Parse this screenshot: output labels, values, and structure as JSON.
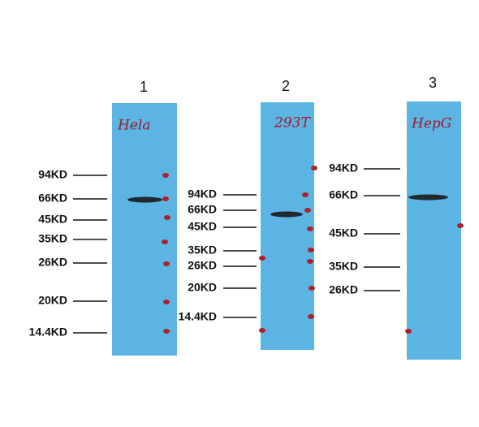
{
  "panels": [
    {
      "number": "1",
      "lane_label": "Hela",
      "markers": [
        "94KD",
        "66KD",
        "45KD",
        "35KD",
        "26KD",
        "20KD",
        "14.4KD"
      ]
    },
    {
      "number": "2",
      "lane_label": "293T",
      "markers": [
        "94KD",
        "66KD",
        "45KD",
        "35KD",
        "26KD",
        "20KD",
        "14.4KD"
      ]
    },
    {
      "number": "3",
      "lane_label": "HepG",
      "markers": [
        "94KD",
        "66KD",
        "45KD",
        "35KD",
        "26KD"
      ]
    }
  ]
}
